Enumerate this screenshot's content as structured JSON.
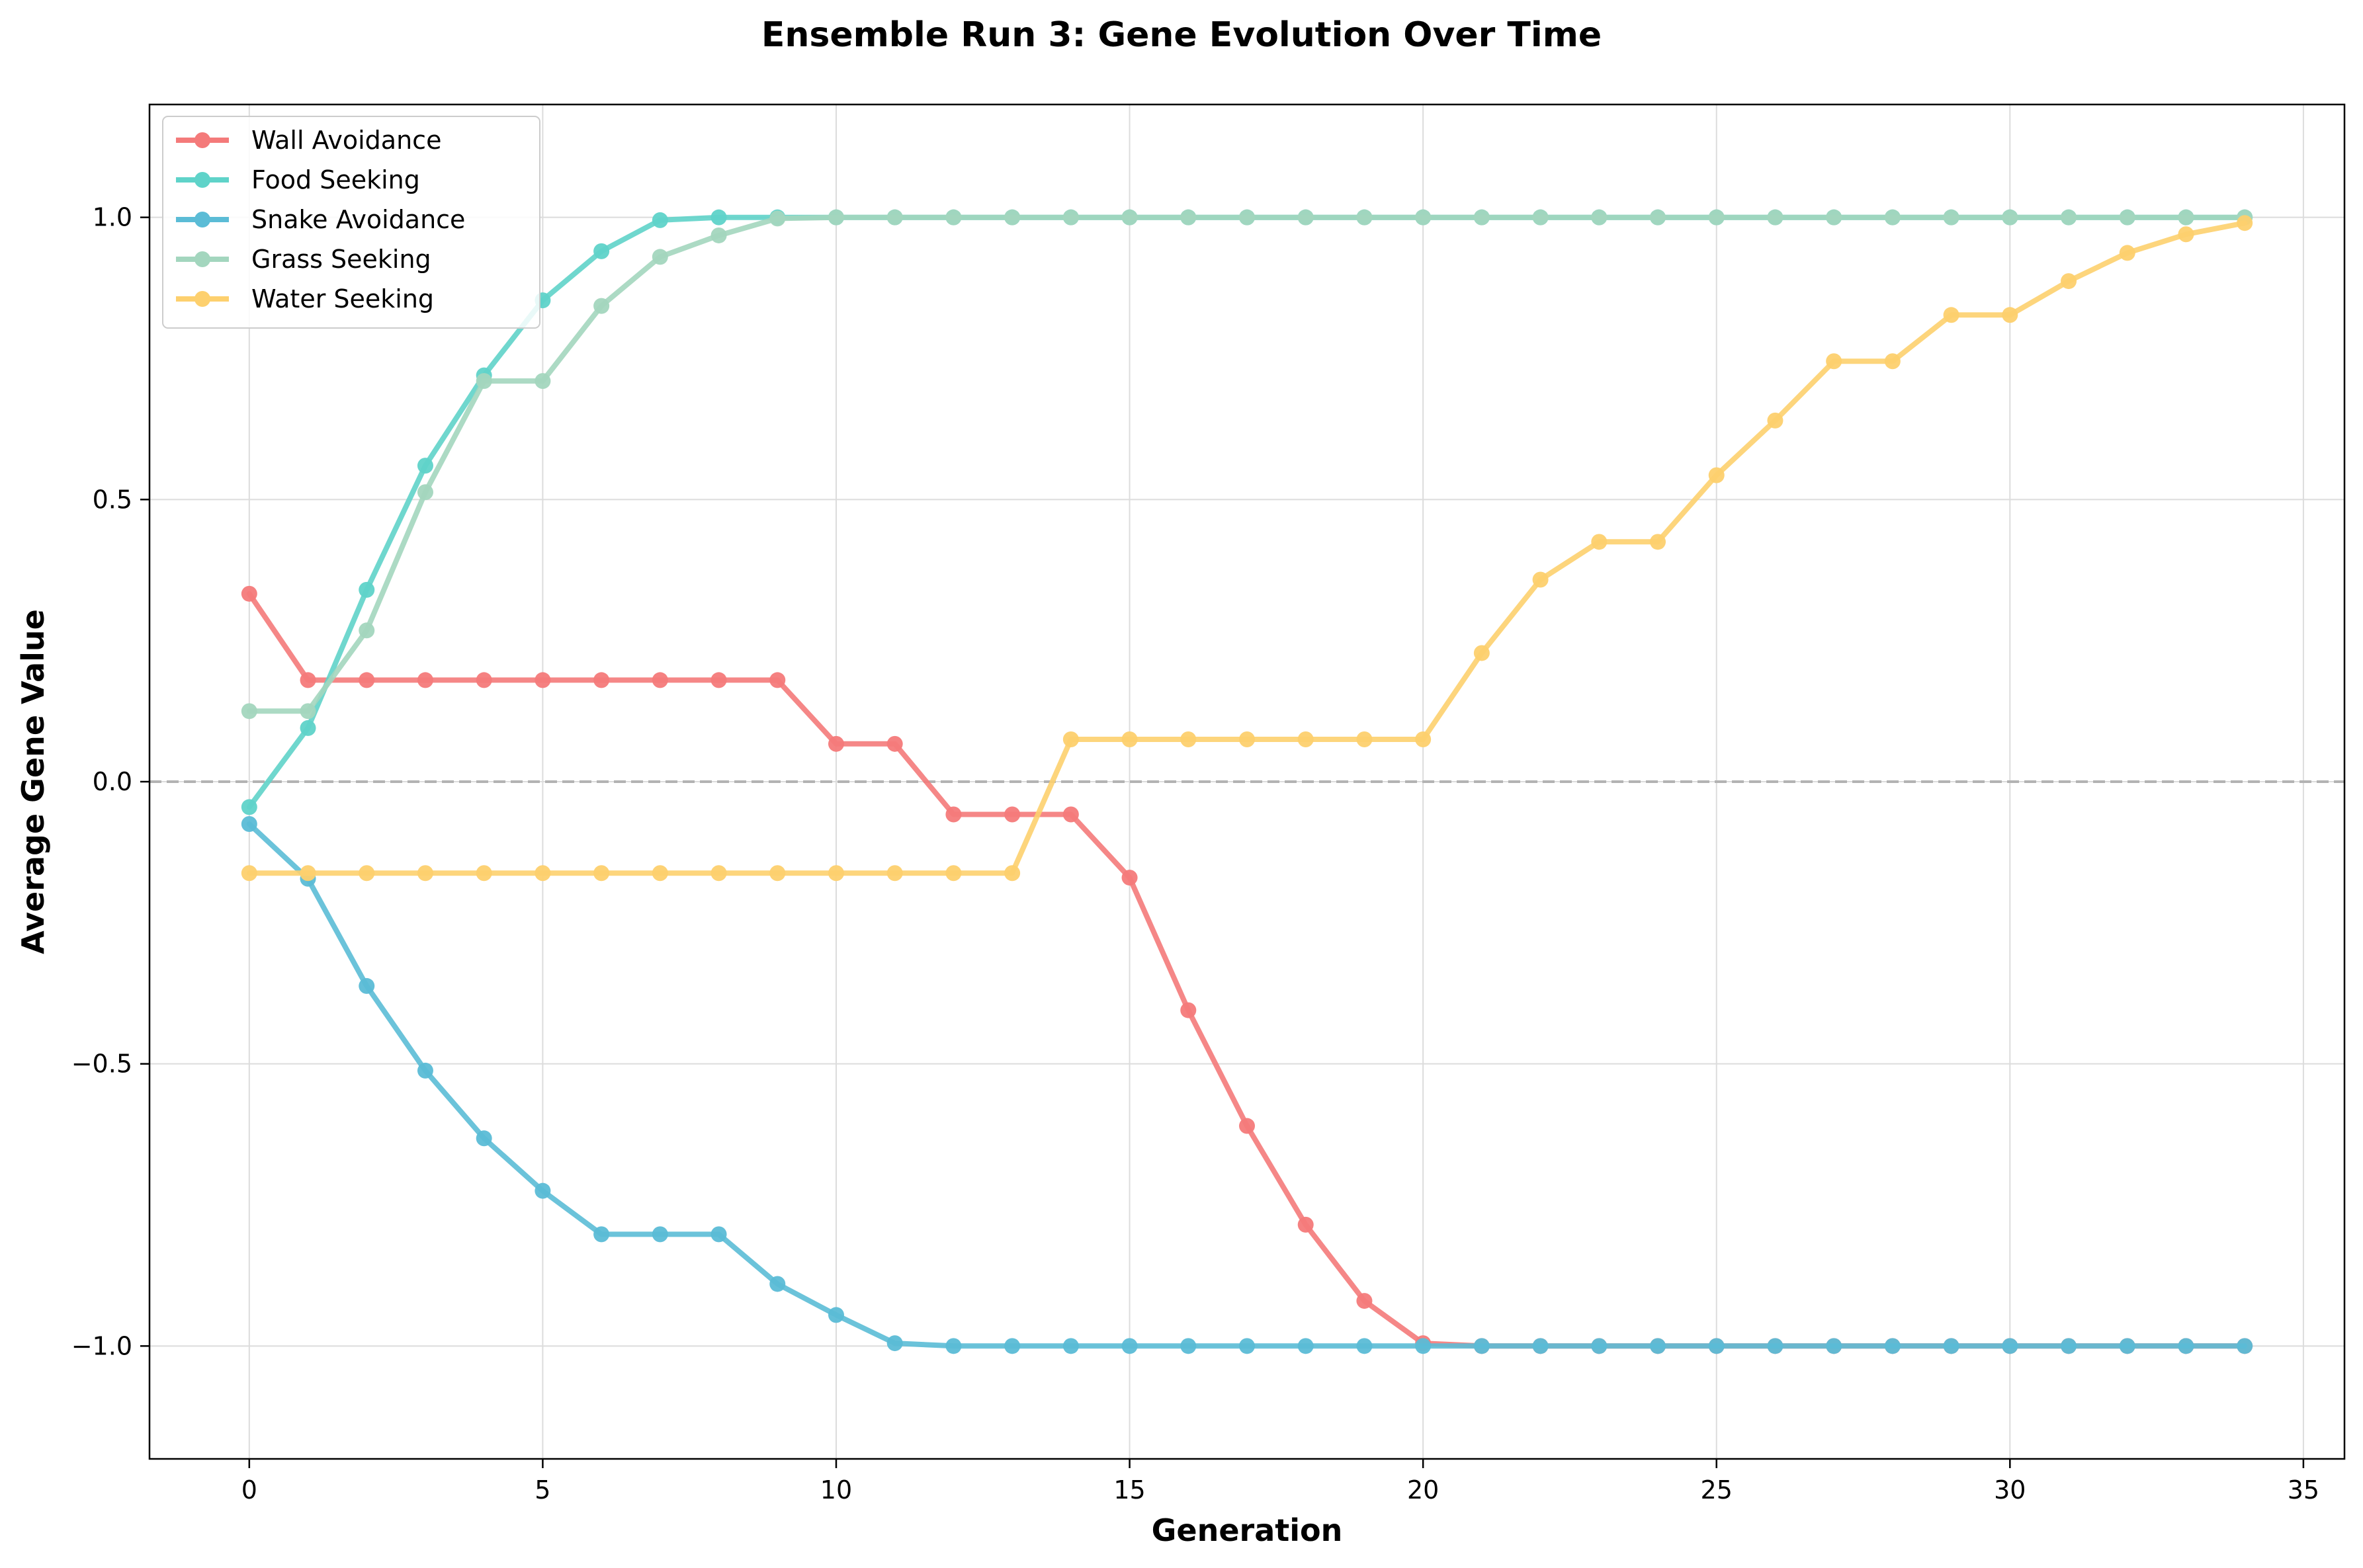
{
  "chart_data": {
    "type": "line",
    "title": "Ensemble Run 3: Gene Evolution Over Time",
    "xlabel": "Generation",
    "ylabel": "Average Gene Value",
    "xlim": [
      -1.7,
      35.7
    ],
    "ylim": [
      -1.2,
      1.2
    ],
    "x_ticks": [
      0,
      5,
      10,
      15,
      20,
      25,
      30,
      35
    ],
    "y_ticks": [
      -1.0,
      -0.5,
      0.0,
      0.5,
      1.0
    ],
    "x_tick_labels": [
      "0",
      "5",
      "10",
      "15",
      "20",
      "25",
      "30",
      "35"
    ],
    "y_tick_labels": [
      "−1.0",
      "−0.5",
      "0.0",
      "0.5",
      "1.0"
    ],
    "grid": true,
    "reference_line": {
      "y": 0.0,
      "style": "dashed",
      "color": "#b3b3b3"
    },
    "legend_position": "upper-left",
    "x": [
      0,
      1,
      2,
      3,
      4,
      5,
      6,
      7,
      8,
      9,
      10,
      11,
      12,
      13,
      14,
      15,
      16,
      17,
      18,
      19,
      20,
      21,
      22,
      23,
      24,
      25,
      26,
      27,
      28,
      29,
      30,
      31,
      32,
      33,
      34
    ],
    "series": [
      {
        "name": "Wall Avoidance",
        "color": "#f47a7a",
        "values": [
          0.333,
          0.18,
          0.18,
          0.18,
          0.18,
          0.18,
          0.18,
          0.18,
          0.18,
          0.18,
          0.067,
          0.067,
          -0.058,
          -0.058,
          -0.058,
          -0.17,
          -0.405,
          -0.61,
          -0.785,
          -0.92,
          -0.995,
          -1.0,
          -1.0,
          -1.0,
          -1.0,
          -1.0,
          -1.0,
          -1.0,
          -1.0,
          -1.0,
          -1.0,
          -1.0,
          -1.0,
          -1.0,
          -1.0
        ]
      },
      {
        "name": "Food Seeking",
        "color": "#5fd3c9",
        "values": [
          -0.045,
          0.095,
          0.34,
          0.56,
          0.72,
          0.853,
          0.94,
          0.995,
          1.0,
          1.0,
          1.0,
          1.0,
          1.0,
          1.0,
          1.0,
          1.0,
          1.0,
          1.0,
          1.0,
          1.0,
          1.0,
          1.0,
          1.0,
          1.0,
          1.0,
          1.0,
          1.0,
          1.0,
          1.0,
          1.0,
          1.0,
          1.0,
          1.0,
          1.0,
          1.0
        ]
      },
      {
        "name": "Snake Avoidance",
        "color": "#5bbcd6",
        "values": [
          -0.075,
          -0.172,
          -0.362,
          -0.512,
          -0.632,
          -0.725,
          -0.802,
          -0.802,
          -0.802,
          -0.89,
          -0.945,
          -0.995,
          -1.0,
          -1.0,
          -1.0,
          -1.0,
          -1.0,
          -1.0,
          -1.0,
          -1.0,
          -1.0,
          -1.0,
          -1.0,
          -1.0,
          -1.0,
          -1.0,
          -1.0,
          -1.0,
          -1.0,
          -1.0,
          -1.0,
          -1.0,
          -1.0,
          -1.0,
          -1.0
        ]
      },
      {
        "name": "Grass Seeking",
        "color": "#a3d6be",
        "values": [
          0.125,
          0.125,
          0.268,
          0.513,
          0.71,
          0.71,
          0.843,
          0.93,
          0.968,
          0.998,
          1.0,
          1.0,
          1.0,
          1.0,
          1.0,
          1.0,
          1.0,
          1.0,
          1.0,
          1.0,
          1.0,
          1.0,
          1.0,
          1.0,
          1.0,
          1.0,
          1.0,
          1.0,
          1.0,
          1.0,
          1.0,
          1.0,
          1.0,
          1.0,
          1.0
        ]
      },
      {
        "name": "Water Seeking",
        "color": "#fdd06e",
        "values": [
          -0.162,
          -0.162,
          -0.162,
          -0.162,
          -0.162,
          -0.162,
          -0.162,
          -0.162,
          -0.162,
          -0.162,
          -0.162,
          -0.162,
          -0.162,
          -0.162,
          0.075,
          0.075,
          0.075,
          0.075,
          0.075,
          0.075,
          0.075,
          0.228,
          0.358,
          0.425,
          0.425,
          0.543,
          0.64,
          0.745,
          0.745,
          0.827,
          0.827,
          0.887,
          0.937,
          0.97,
          0.99
        ]
      }
    ]
  }
}
